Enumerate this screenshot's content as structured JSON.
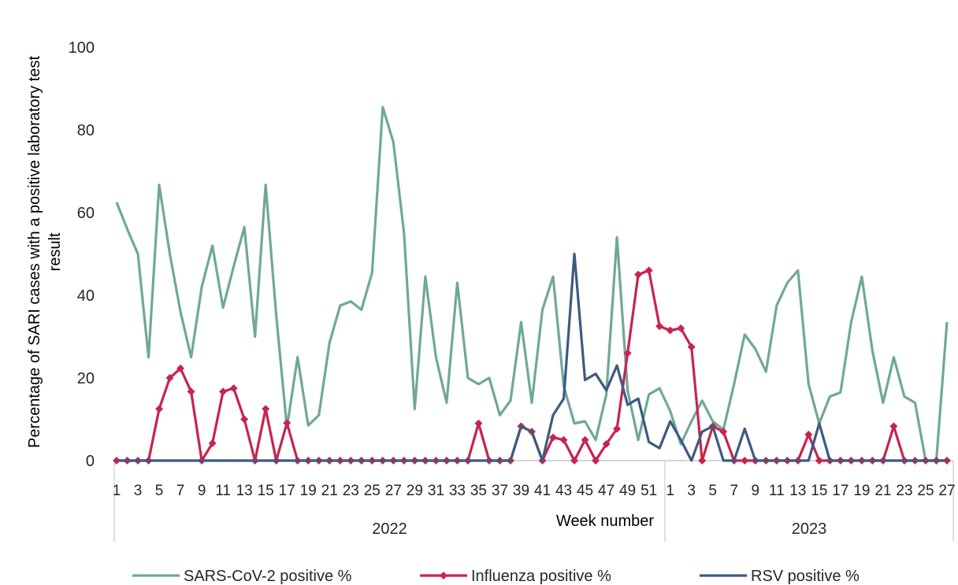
{
  "chart_data": {
    "type": "line",
    "ylabel_lines": [
      "Percentage  of SARI cases with a positive laboratory test",
      "result"
    ],
    "xlabel": "Week number",
    "ylim": [
      0,
      100
    ],
    "y_ticks": [
      0,
      20,
      40,
      60,
      80,
      100
    ],
    "grid": false,
    "legend_position": "bottom",
    "year_groups": [
      {
        "label": "2022",
        "first_week": 1,
        "last_week": 52
      },
      {
        "label": "2023",
        "first_week": 1,
        "last_week": 27
      }
    ],
    "x_tick_labels": [
      "1",
      "3",
      "5",
      "7",
      "9",
      "11",
      "13",
      "15",
      "17",
      "19",
      "21",
      "23",
      "25",
      "27",
      "29",
      "31",
      "33",
      "35",
      "37",
      "39",
      "41",
      "43",
      "45",
      "47",
      "49",
      "51",
      "1",
      "3",
      "5",
      "7",
      "9",
      "11",
      "13",
      "15",
      "17",
      "19",
      "21",
      "23",
      "25",
      "27"
    ],
    "series": [
      {
        "name": "SARS-CoV-2 positive  %",
        "color": "#6fa89a",
        "marker": "none",
        "values": [
          62.5,
          56,
          50,
          25,
          66.7,
          50,
          36,
          25,
          42,
          52,
          37,
          47,
          56.5,
          30,
          66.7,
          35,
          8,
          25,
          8.5,
          11,
          28.5,
          37.5,
          38.5,
          36.5,
          45.5,
          85.5,
          77,
          55,
          12.5,
          44.5,
          25,
          14,
          43,
          20,
          18.5,
          20,
          11,
          14.5,
          33.5,
          14,
          36.5,
          44.5,
          18,
          9,
          9.5,
          5,
          16,
          54,
          17,
          5,
          16,
          17.5,
          12,
          4,
          9.5,
          14.5,
          9.5,
          7.5,
          18.5,
          30.5,
          27,
          21.5,
          37.5,
          43,
          46,
          18.5,
          9,
          15.5,
          16.5,
          33.5,
          44.5,
          26.5,
          14,
          25,
          15.5,
          14,
          0,
          0,
          33.5
        ]
      },
      {
        "name": "Influenza positive  %",
        "color": "#c8244c",
        "marker": "diamond",
        "values": [
          0,
          0,
          0,
          0,
          12.5,
          20,
          22.3,
          16.7,
          0,
          4.2,
          16.7,
          17.5,
          10,
          0,
          12.5,
          0,
          9.1,
          0,
          0,
          0,
          0,
          0,
          0,
          0,
          0,
          0,
          0,
          0,
          0,
          0,
          0,
          0,
          0,
          0,
          9,
          0,
          0,
          0,
          8.3,
          7,
          0,
          5.6,
          5,
          0,
          5,
          0,
          4,
          7.7,
          26,
          45,
          46,
          32.5,
          31.5,
          32,
          27.5,
          0,
          8.3,
          7,
          0,
          0,
          0,
          0,
          0,
          0,
          0,
          6.3,
          0,
          0,
          0,
          0,
          0,
          0,
          0,
          8.3,
          0,
          0,
          0,
          0,
          0
        ]
      },
      {
        "name": "RSV positive  %",
        "color": "#3d5a80",
        "marker": "none",
        "values": [
          0,
          0,
          0,
          0,
          0,
          0,
          0,
          0,
          0,
          0,
          0,
          0,
          0,
          0,
          0,
          0,
          0,
          0,
          0,
          0,
          0,
          0,
          0,
          0,
          0,
          0,
          0,
          0,
          0,
          0,
          0,
          0,
          0,
          0,
          0,
          0,
          0,
          0,
          8.3,
          7,
          0,
          11,
          15,
          50,
          19.5,
          21,
          17,
          23,
          13.5,
          15,
          4.5,
          3,
          9.5,
          5,
          0,
          7,
          8.3,
          0,
          0,
          7.7,
          0,
          0,
          0,
          0,
          0,
          0,
          9,
          0,
          0,
          0,
          0,
          0,
          0,
          0,
          0,
          0,
          0,
          0,
          0
        ]
      }
    ]
  }
}
